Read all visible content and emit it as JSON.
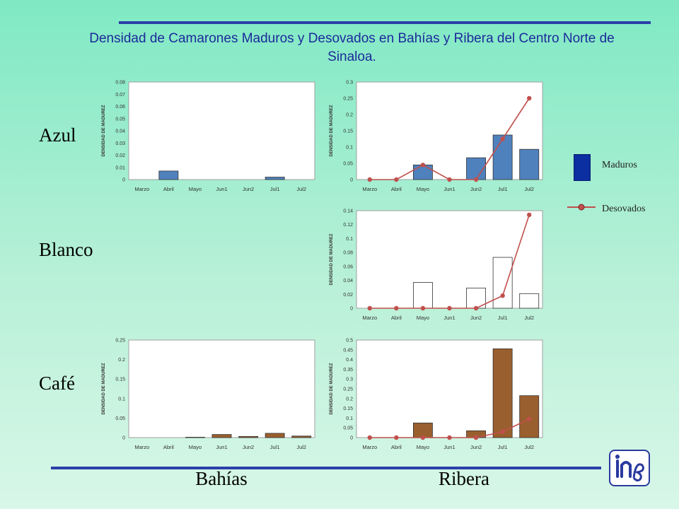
{
  "title": "Densidad de Camarones Maduros y Desovados en Bahías y Ribera del Centro Norte de Sinaloa.",
  "rows": [
    "Azul",
    "Blanco",
    "Café"
  ],
  "columns": [
    "Bahías",
    "Ribera"
  ],
  "legend": {
    "maduros": "Maduros",
    "desovados": "Desovados"
  },
  "colors": {
    "azul": "#4f81bd",
    "blanco": "#ffffff",
    "cafe": "#9a5f2e",
    "line": "#c0504d",
    "rule": "#2b3fa8"
  },
  "logo_icon": "inp-logo-icon",
  "chart_data": [
    {
      "id": "azul-bahias",
      "type": "bar",
      "categories": [
        "Marzo",
        "Abril",
        "Mayo",
        "Jun1",
        "Jun2",
        "Jul1",
        "Jul2"
      ],
      "ylabel": "DENSIDAD DE MADUREZ",
      "ylim": [
        0,
        0.08
      ],
      "yticks": [
        "0",
        "0.01",
        "0.02",
        "0.03",
        "0.04",
        "0.05",
        "0.06",
        "0.07",
        "0.08"
      ],
      "bar_color": "#4f81bd",
      "series": [
        {
          "values": [
            0,
            0.007,
            0,
            0,
            0,
            0.002,
            0
          ]
        }
      ]
    },
    {
      "id": "azul-ribera",
      "type": "bar",
      "categories": [
        "Marzo",
        "Abril",
        "Mayo",
        "Jun1",
        "Jun2",
        "Jul1",
        "Jul2"
      ],
      "ylabel": "DENSIDAD DE MADUREZ",
      "ylim": [
        0,
        0.3
      ],
      "yticks": [
        "0",
        "0.05",
        "0.1",
        "0.15",
        "0.2",
        "0.25",
        "0.3"
      ],
      "bar_color": "#4f81bd",
      "series": [
        {
          "values": [
            0,
            0,
            0.045,
            0,
            0.067,
            0.137,
            0.093
          ]
        },
        {
          "values": [
            0,
            0,
            0.045,
            0,
            0,
            0.125,
            0.25
          ]
        }
      ]
    },
    {
      "id": "blanco-ribera",
      "type": "bar",
      "categories": [
        "Marzo",
        "Abril",
        "Mayo",
        "Jun1",
        "Jun2",
        "Jul1",
        "Jul2"
      ],
      "ylabel": "DENSIDAD DE MADUREZ",
      "ylim": [
        0,
        0.14
      ],
      "yticks": [
        "0",
        "0.02",
        "0.04",
        "0.06",
        "0.08",
        "0.1",
        "0.12",
        "0.14"
      ],
      "bar_color": "#ffffff",
      "series": [
        {
          "values": [
            0,
            0,
            0.037,
            0,
            0.029,
            0.073,
            0.021
          ]
        },
        {
          "values": [
            0,
            0,
            0,
            0,
            0,
            0.018,
            0.134
          ]
        }
      ]
    },
    {
      "id": "cafe-bahias",
      "type": "bar",
      "categories": [
        "Marzo",
        "Abril",
        "Mayo",
        "Jun1",
        "Jun2",
        "Jul1",
        "Jul2"
      ],
      "ylabel": "DENSIDAD DE MADUREZ",
      "ylim": [
        0,
        0.25
      ],
      "yticks": [
        "0",
        "0.05",
        "0.1",
        "0.15",
        "0.2",
        "0.25"
      ],
      "bar_color": "#9a5f2e",
      "series": [
        {
          "values": [
            0,
            0,
            0.001,
            0.008,
            0.003,
            0.011,
            0.004
          ]
        }
      ]
    },
    {
      "id": "cafe-ribera",
      "type": "bar",
      "categories": [
        "Marzo",
        "Abril",
        "Mayo",
        "Jun1",
        "Jun2",
        "Jul1",
        "Jul2"
      ],
      "ylabel": "DENSIDAD DE MADUREZ",
      "ylim": [
        0,
        0.5
      ],
      "yticks": [
        "0",
        "0.05",
        "0.1",
        "0.15",
        "0.2",
        "0.25",
        "0.3",
        "0.35",
        "0.4",
        "0.45",
        "0.5"
      ],
      "bar_color": "#9a5f2e",
      "series": [
        {
          "values": [
            0,
            0,
            0.075,
            0,
            0.035,
            0.455,
            0.215
          ]
        },
        {
          "values": [
            0,
            0,
            0,
            0,
            0,
            0.03,
            0.095
          ]
        }
      ]
    }
  ]
}
